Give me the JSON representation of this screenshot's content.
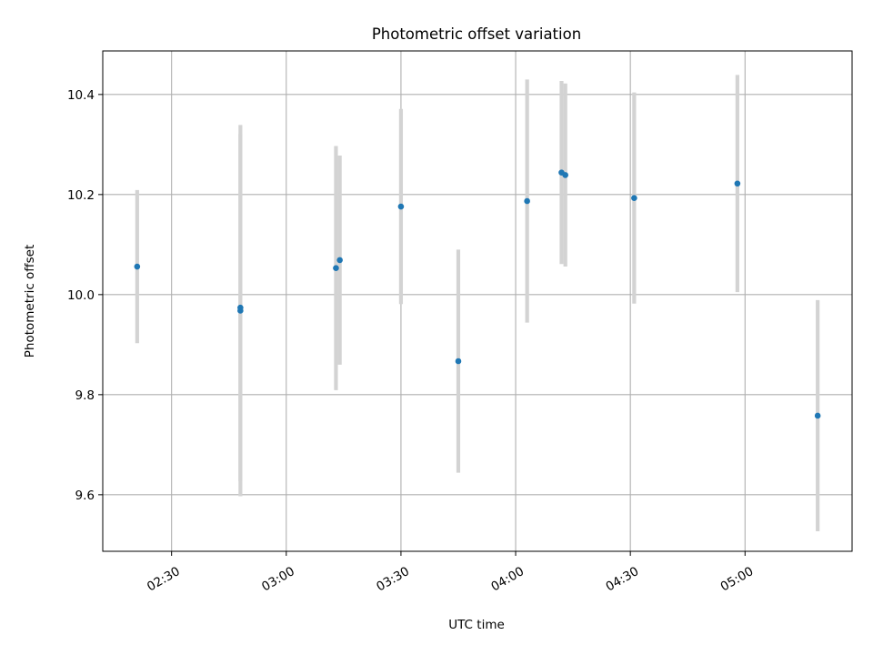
{
  "chart_data": {
    "type": "scatter",
    "title": "Photometric offset variation",
    "xlabel": "UTC time",
    "ylabel": "Photometric offset",
    "xlim": [
      "02:12",
      "05:28"
    ],
    "ylim": [
      9.487,
      10.487
    ],
    "x_ticks": [
      "02:30",
      "03:00",
      "03:30",
      "04:00",
      "04:30",
      "05:00"
    ],
    "y_ticks": [
      "9.6",
      "9.8",
      "10.0",
      "10.2",
      "10.4"
    ],
    "grid": true,
    "colors": {
      "marker": "#1f77b4",
      "errorbar": "#d3d3d3",
      "grid": "#b0b0b0"
    },
    "points": [
      {
        "x": "02:21",
        "y": 10.056,
        "err": 0.153
      },
      {
        "x": "02:48",
        "y": 9.968,
        "err": 0.371
      },
      {
        "x": "02:48",
        "y": 9.974,
        "err": 0.347
      },
      {
        "x": "03:13",
        "y": 10.053,
        "err": 0.244
      },
      {
        "x": "03:14",
        "y": 10.069,
        "err": 0.209
      },
      {
        "x": "03:30",
        "y": 10.176,
        "err": 0.195
      },
      {
        "x": "03:45",
        "y": 9.867,
        "err": 0.223
      },
      {
        "x": "04:03",
        "y": 10.187,
        "err": 0.243
      },
      {
        "x": "04:12",
        "y": 10.244,
        "err": 0.183
      },
      {
        "x": "04:13",
        "y": 10.239,
        "err": 0.183
      },
      {
        "x": "04:31",
        "y": 10.193,
        "err": 0.211
      },
      {
        "x": "04:58",
        "y": 10.222,
        "err": 0.217
      },
      {
        "x": "05:19",
        "y": 9.758,
        "err": 0.231
      }
    ]
  }
}
